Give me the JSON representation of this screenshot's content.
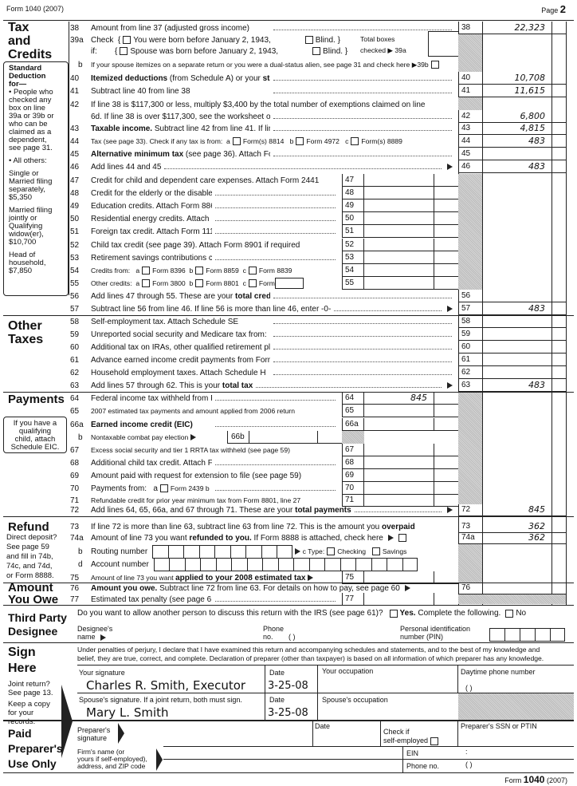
{
  "header": {
    "form": "Form 1040 (2007)",
    "page_label": "Page",
    "page": "2"
  },
  "sections": {
    "tax": [
      "Tax",
      "and",
      "Credits"
    ],
    "other": [
      "Other",
      "Taxes"
    ],
    "payments": "Payments",
    "refund": "Refund",
    "owe": [
      "Amount",
      "You Owe"
    ],
    "third": [
      "Third Party",
      "Designee"
    ],
    "sign": [
      "Sign",
      "Here"
    ],
    "paid": [
      "Paid",
      "Preparer's",
      "Use Only"
    ]
  },
  "std_box": {
    "title": [
      "Standard",
      "Deduction",
      "for—"
    ],
    "items": [
      "• People who",
      "checked any",
      "box on line",
      "39a or 39b or",
      "who can be",
      "claimed as a",
      "dependent,",
      "see page 31.",
      "",
      "• All others:",
      "",
      "Single or",
      "Married filing",
      "separately,",
      "$5,350",
      "",
      "Married filing",
      "jointly or",
      "Qualifying",
      "widow(er),",
      "$10,700",
      "",
      "Head of",
      "household,",
      "$7,850"
    ]
  },
  "eic_box": [
    "If you have a",
    "qualifying",
    "child, attach",
    "Schedule EIC."
  ],
  "refund_note": [
    "Direct deposit?",
    "See page 59",
    "and fill in 74b,",
    "74c, and 74d,",
    "or Form 8888."
  ],
  "lines": [
    {
      "n": "38",
      "p": [
        "Amount from line 37 (adjusted gross income)"
      ],
      "r": "38",
      "v": "22,323"
    },
    {
      "n": "39a",
      "p": [
        "Check  {",
        {
          "cb": 1
        },
        "You were born before January 2, 1943,",
        {
          "sp": 1
        },
        {
          "cb": 1
        },
        "Blind. }"
      ],
      "nodots": 1,
      "tail": "Total boxes"
    },
    {
      "n": "",
      "p": [
        "if:        {",
        {
          "cb": 1
        },
        "Spouse was born before January 2, 1943,",
        {
          "sp": 1
        },
        {
          "cb": 1
        },
        "Blind. }"
      ],
      "nodots": 1,
      "tail": "checked ▶ 39a"
    },
    {
      "n": "b",
      "p": [
        {
          "s": "If your spouse itemizes on a separate return or you were a dual-status alien, see page 31 and check here ▶39b"
        },
        {
          "cb": 1
        }
      ],
      "nodots": 1
    },
    {
      "n": "40",
      "p": [
        {
          "b": "Itemized deductions"
        },
        " (from Schedule A) or your ",
        {
          "b": "standard deduction"
        },
        " (see left margin)"
      ],
      "r": "40",
      "v": "10,708"
    },
    {
      "n": "41",
      "p": [
        "Subtract line 40 from line 38"
      ],
      "r": "41",
      "v": "11,615"
    },
    {
      "n": "42",
      "p": [
        "If line 38 is $117,300 or less, multiply $3,400 by the total number of exemptions claimed on line"
      ],
      "nodots": 1
    },
    {
      "n": "",
      "p": [
        "6d. If line 38 is over $117,300, see the worksheet on page 33"
      ],
      "r": "42",
      "v": "6,800"
    },
    {
      "n": "43",
      "p": [
        {
          "b": "Taxable income."
        },
        " Subtract line 42 from line 41. If line 42 is more than line 41, enter -0-"
      ],
      "r": "43",
      "v": "4,815"
    },
    {
      "n": "44",
      "p": [
        {
          "s": "Tax (see page 33). Check if any tax is from:  a"
        },
        {
          "cb": 1
        },
        {
          "s": "Form(s) 8814   b"
        },
        {
          "cb": 1
        },
        {
          "s": "Form 4972   c"
        },
        {
          "cb": 1
        },
        {
          "s": "Form(s) 8889"
        }
      ],
      "nodots": 1,
      "r": "44",
      "v": "483"
    },
    {
      "n": "45",
      "p": [
        {
          "b": "Alternative minimum tax"
        },
        " (see page 36). Attach Form 6251"
      ],
      "r": "45",
      "v": ""
    },
    {
      "n": "46",
      "p": [
        "Add lines 44 and 45",
        {
          "dots": 1
        },
        {
          "ar": 1
        }
      ],
      "nodots": 1,
      "r": "46",
      "v": "483"
    },
    {
      "n": "47",
      "p": [
        "Credit for child and dependent care expenses. Attach Form 2441"
      ],
      "i": "47",
      "nodots": 1
    },
    {
      "n": "48",
      "p": [
        "Credit for the elderly or the disabled. Attach Schedule R"
      ],
      "i": "48"
    },
    {
      "n": "49",
      "p": [
        "Education credits. Attach Form 8863"
      ],
      "i": "49"
    },
    {
      "n": "50",
      "p": [
        "Residential energy credits. Attach Form 5695"
      ],
      "i": "50"
    },
    {
      "n": "51",
      "p": [
        "Foreign tax credit. Attach Form 1116 if required"
      ],
      "i": "51"
    },
    {
      "n": "52",
      "p": [
        "Child tax credit (see page 39). Attach Form 8901 if required"
      ],
      "i": "52",
      "nodots": 1
    },
    {
      "n": "53",
      "p": [
        "Retirement savings contributions credit. Attach Form 8880"
      ],
      "i": "53"
    },
    {
      "n": "54",
      "p": [
        {
          "s": "Credits from:   a"
        },
        {
          "cb": 1
        },
        {
          "s": "Form 8396  b"
        },
        {
          "cb": 1
        },
        {
          "s": "Form 8859  c"
        },
        {
          "cb": 1
        },
        {
          "s": "Form 8839"
        }
      ],
      "i": "54",
      "nodots": 1
    },
    {
      "n": "55",
      "p": [
        {
          "s": "Other credits:  a"
        },
        {
          "cb": 1
        },
        {
          "s": "Form 3800  b"
        },
        {
          "cb": 1
        },
        {
          "s": "Form 8801  c"
        },
        {
          "cb": 1
        },
        {
          "s": "Form"
        },
        {
          "wb": 1
        }
      ],
      "i": "55",
      "nodots": 1
    },
    {
      "n": "56",
      "p": [
        "Add lines 47 through 55. These are your ",
        {
          "b": "total credits"
        }
      ],
      "r": "56",
      "v": ""
    },
    {
      "n": "57",
      "p": [
        "Subtract line 56 from line 46. If line 56 is more than line 46, enter -0-",
        {
          "dots": 1
        },
        {
          "ar": 1
        }
      ],
      "nodots": 1,
      "r": "57",
      "v": "483"
    },
    {
      "n": "58",
      "p": [
        "Self-employment tax. Attach Schedule SE"
      ],
      "r": "58",
      "v": ""
    },
    {
      "n": "59",
      "p": [
        "Unreported social security and Medicare tax from:  a",
        {
          "cb": 1
        },
        "Form 4137     b",
        {
          "cb": 1
        },
        "Form 8919"
      ],
      "r": "59",
      "v": ""
    },
    {
      "n": "60",
      "p": [
        "Additional tax on IRAs, other qualified retirement plans, etc. Attach Form 5329 if required"
      ],
      "r": "60",
      "v": ""
    },
    {
      "n": "61",
      "p": [
        "Advance earned income credit payments from Form(s) W-2, box 9"
      ],
      "r": "61",
      "v": ""
    },
    {
      "n": "62",
      "p": [
        "Household employment taxes. Attach Schedule H"
      ],
      "r": "62",
      "v": ""
    },
    {
      "n": "63",
      "p": [
        "Add lines 57 through 62. This is your ",
        {
          "b": "total tax"
        },
        {
          "dots": 1
        },
        {
          "ar": 1
        }
      ],
      "nodots": 1,
      "r": "63",
      "v": "483"
    },
    {
      "n": "64",
      "p": [
        "Federal income tax withheld from Forms W-2 and 1099"
      ],
      "i": "64",
      "iv": "845"
    },
    {
      "n": "65",
      "p": [
        {
          "s": "2007 estimated tax payments and amount applied from 2006 return"
        }
      ],
      "i": "65",
      "nodots": 1
    },
    {
      "n": "66a",
      "p": [
        {
          "b": "Earned income credit (EIC)"
        }
      ],
      "i": "66a"
    },
    {
      "n": "b",
      "p": [
        {
          "s": "Nontaxable combat pay election"
        },
        {
          "ar": 1
        }
      ],
      "nodots": 1,
      "i66b": "66b"
    },
    {
      "n": "67",
      "p": [
        {
          "s": "Excess social security and tier 1 RRTA tax withheld (see page 59)"
        }
      ],
      "i": "67",
      "nodots": 1
    },
    {
      "n": "68",
      "p": [
        "Additional child tax credit. Attach Form 8812"
      ],
      "i": "68"
    },
    {
      "n": "69",
      "p": [
        "Amount paid with request for extension to file (see page 59)"
      ],
      "i": "69",
      "nodots": 1
    },
    {
      "n": "70",
      "p": [
        "Payments from:   a",
        {
          "cb": 1
        },
        {
          "s": "Form 2439 b"
        },
        {
          "cb": 1
        },
        {
          "s": "Form 4136 c"
        },
        {
          "cb": 1
        },
        {
          "s": "Form 8885"
        }
      ],
      "i": "70"
    },
    {
      "n": "71",
      "p": [
        {
          "s": "Refundable credit for prior year minimum tax from Form 8801, line 27"
        }
      ],
      "i": "71",
      "nodots": 1
    },
    {
      "n": "72",
      "p": [
        "Add lines 64, 65, 66a, and 67 through 71. These are your ",
        {
          "b": "total payments"
        },
        {
          "dots": 1
        },
        {
          "ar": 1
        }
      ],
      "nodots": 1,
      "r": "72",
      "v": "845"
    },
    {
      "n": "73",
      "p": [
        "If line 72 is more than line 63, subtract line 63 from line 72. This is the amount you ",
        {
          "b": "overpaid"
        }
      ],
      "nodots": 1,
      "r": "73",
      "v": "362"
    },
    {
      "n": "74a",
      "p": [
        "Amount of line 73 you want ",
        {
          "b": "refunded to you."
        },
        " If Form 8888 is attached, check here ",
        {
          "ar": 1
        },
        {
          "cb": 1
        }
      ],
      "nodots": 1,
      "r": "74a",
      "v": "362"
    },
    {
      "n": "b",
      "p": [
        "Routing number",
        {
          "digits": 9
        },
        {
          "ar": 1
        },
        {
          "s": "c Type:"
        },
        {
          "cb": 1
        },
        {
          "s": "Checking  "
        },
        {
          "cb": 1
        },
        {
          "s": "Savings"
        }
      ],
      "nodots": 1
    },
    {
      "n": "d",
      "p": [
        "Account number",
        {
          "digits": 17
        }
      ],
      "nodots": 1
    },
    {
      "n": "75",
      "p": [
        {
          "s": "Amount of line 73 you want "
        },
        {
          "b": "applied to your 2008 estimated tax"
        },
        {
          "ar": 1
        }
      ],
      "nodots": 1,
      "i": "75"
    },
    {
      "n": "76",
      "p": [
        {
          "b": "Amount you owe."
        },
        " Subtract line 72 from line 63. For details on how to pay, see page 60 ",
        {
          "ar": 1
        }
      ],
      "nodots": 1,
      "r": "76",
      "v": ""
    },
    {
      "n": "77",
      "p": [
        "Estimated tax penalty (see page 61)"
      ],
      "i": "77"
    }
  ],
  "third_party": {
    "question": "Do you want to allow another person to discuss this return with the IRS (see page 61)?",
    "yes": "Yes.",
    "yes_rest": "Complete the following.",
    "no": "No",
    "designee": [
      "Designee's",
      "name"
    ],
    "phone": [
      "Phone",
      "no."
    ],
    "phone_paren": "(      )",
    "pin": [
      "Personal identification",
      "number (PIN)"
    ]
  },
  "sign": {
    "declaration": [
      "Under penalties of perjury, I declare that I have examined this return and accompanying schedules and statements, and to the best of my knowledge and",
      "belief, they are true, correct, and complete. Declaration of preparer (other than taxpayer) is based on all information of which preparer has any knowledge."
    ],
    "notes": [
      "Joint return?",
      "See page 13.",
      "Keep a copy",
      "for your",
      "records."
    ],
    "your_sig_label": "Your signature",
    "your_sig": "Charles R. Smith, Executor",
    "date_label": "Date",
    "your_date": "3-25-08",
    "occupation_label": "Your occupation",
    "phone_label": "Daytime phone number",
    "phone_paren": "(      )",
    "spouse_sig_label": "Spouse's signature. If a joint return, both must sign.",
    "spouse_sig": "Mary L. Smith",
    "spouse_date": "3-25-08",
    "spouse_occ_label": "Spouse's occupation"
  },
  "preparer": {
    "sig": [
      "Preparer's",
      "signature"
    ],
    "date": "Date",
    "check": [
      "Check if",
      "self-employed"
    ],
    "ssn": "Preparer's SSN or PTIN",
    "firm": [
      "Firm's name (or",
      "yours if self-employed),",
      "address, and ZIP code"
    ],
    "ein": "EIN",
    "ein_colon": ":",
    "phone": "Phone no.",
    "phone_paren": "(      )"
  },
  "footer": {
    "form": "Form",
    "num": "1040",
    "year": "(2007)"
  }
}
